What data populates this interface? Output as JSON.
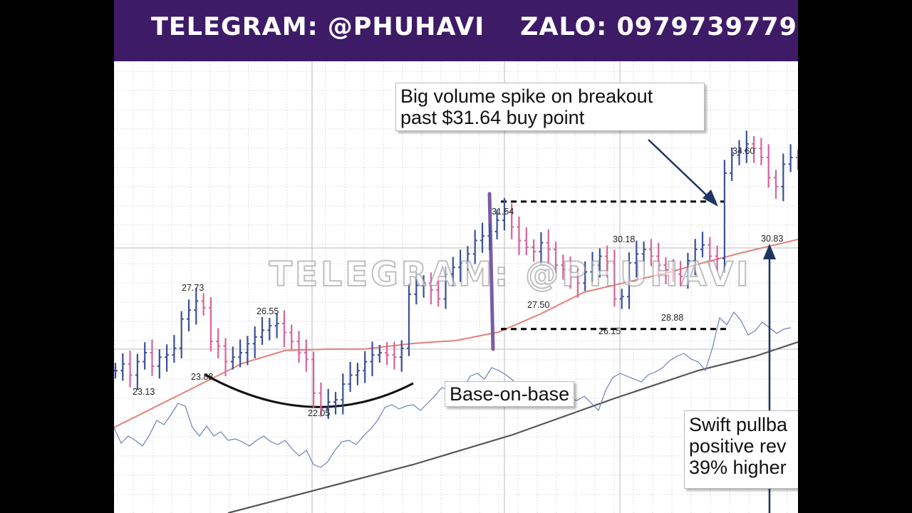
{
  "banner": {
    "telegram": "TELEGRAM: @PHUHAVI",
    "zalo": "ZALO: 0979739779"
  },
  "watermark": "TELEGRAM: @PHUHAVI",
  "annotations": {
    "breakout_line1": "Big volume spike on breakout",
    "breakout_line2": "past $31.64 buy point",
    "base_on_base": "Base-on-base",
    "pullback_line1": "Swift pullba",
    "pullback_line2": "positive rev",
    "pullback_line3": "39% higher"
  },
  "colors": {
    "banner_bg": "#3d1b66",
    "up_bar": "#3a4f9c",
    "down_bar": "#d9639b",
    "moving_average": "#e2827a",
    "relative_strength": "#6b80b8",
    "long_trend": "#555555",
    "volume_spike": "#7b5ba8",
    "arrow": "#1f3563"
  },
  "chart_data": {
    "type": "ohlc",
    "series": [
      {
        "values": [
          24.2,
          24.5,
          24.0,
          24.6,
          25.0,
          24.4,
          24.8,
          24.9,
          25.2,
          26.5,
          26.9,
          27.3,
          27.0,
          25.5,
          25.3,
          24.6,
          24.8,
          25.0,
          25.4,
          25.7,
          26.0,
          26.2,
          26.3,
          25.9,
          25.5,
          25.0,
          24.7,
          23.2,
          22.5,
          22.8,
          22.9,
          23.6,
          24.0,
          24.2,
          24.6,
          24.9,
          25.0,
          24.9,
          24.8,
          25.2,
          27.6,
          28.0,
          28.1,
          27.8,
          27.4,
          28.5,
          28.8,
          29.0,
          29.4,
          30.0,
          30.2,
          30.4,
          30.9,
          31.3,
          30.6,
          30.0,
          29.7,
          29.5,
          29.9,
          29.6,
          28.9,
          28.7,
          28.4,
          28.1,
          28.6,
          28.9,
          29.3,
          29.0,
          27.4,
          27.5,
          29.0,
          29.4,
          29.6,
          29.3,
          28.9,
          28.7,
          28.5,
          28.4,
          29.1,
          29.6,
          29.8,
          29.3,
          29.2,
          33.0,
          33.8,
          34.0,
          34.3,
          34.1,
          33.7,
          32.8,
          32.4,
          33.4,
          33.7,
          33.6,
          33.7
        ]
      }
    ],
    "annotated_prices": [
      "23.13",
      "23.88",
      "27.73",
      "26.55",
      "22.05",
      "31.54",
      "27.50",
      "26.15",
      "30.18",
      "28.88",
      "34.60",
      "30.83"
    ],
    "reference_lines": [
      31.64,
      26.15
    ],
    "grid": true
  }
}
